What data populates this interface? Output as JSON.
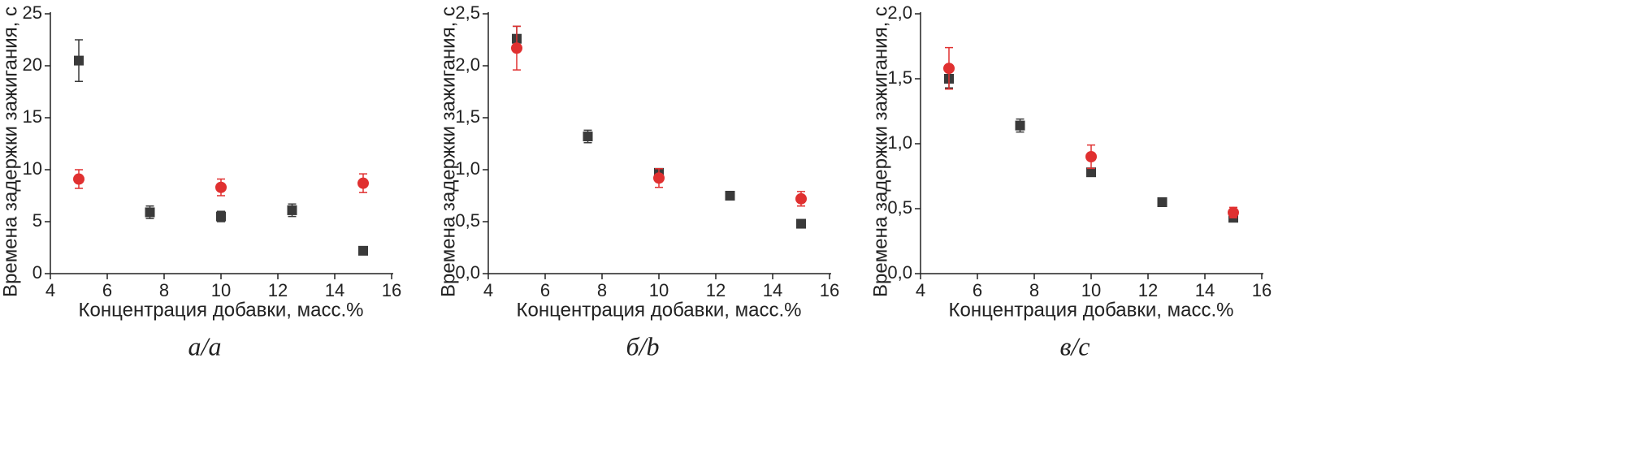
{
  "chart_data": [
    {
      "type": "scatter",
      "caption": "а/a",
      "x_label": "Концентрация добавки, масс.%",
      "y_label": "Времена задержки зажигания, с",
      "xlim": [
        4,
        16
      ],
      "xticks": [
        4,
        6,
        8,
        10,
        12,
        14,
        16
      ],
      "ylim": [
        0,
        25
      ],
      "yticks": [
        0,
        5,
        10,
        15,
        20,
        25
      ],
      "series": [
        {
          "color": "#3a3a3a",
          "marker": "square",
          "x": [
            5,
            7.5,
            10,
            12.5,
            15
          ],
          "values": [
            20.5,
            5.9,
            5.5,
            6.1,
            2.2
          ],
          "errors": [
            2.0,
            0.6,
            0.5,
            0.6,
            0.2
          ]
        },
        {
          "color": "#e03030",
          "marker": "circle",
          "x": [
            5,
            10,
            15
          ],
          "values": [
            9.1,
            8.3,
            8.7
          ],
          "errors": [
            0.9,
            0.8,
            0.9
          ]
        }
      ]
    },
    {
      "type": "scatter",
      "caption": "б/b",
      "x_label": "Концентрация добавки, масс.%",
      "y_label": "Времена задержки зажигания, с",
      "xlim": [
        4,
        16
      ],
      "xticks": [
        4,
        6,
        8,
        10,
        12,
        14,
        16
      ],
      "ylim": [
        0,
        2.5
      ],
      "yticks": [
        {
          "value": 0,
          "label": "0,0"
        },
        {
          "value": 0.5,
          "label": "0,5"
        },
        {
          "value": 1,
          "label": "1,0"
        },
        {
          "value": 1.5,
          "label": "1,5"
        },
        {
          "value": 2,
          "label": "2,0"
        },
        {
          "value": 2.5,
          "label": "2,5"
        }
      ],
      "series": [
        {
          "color": "#3a3a3a",
          "marker": "square",
          "x": [
            5,
            7.5,
            10,
            12.5,
            15
          ],
          "values": [
            2.26,
            1.32,
            0.97,
            0.75,
            0.48
          ],
          "errors": [
            0.12,
            0.06,
            0.04,
            0.02,
            0.02
          ]
        },
        {
          "color": "#e03030",
          "marker": "circle",
          "x": [
            5,
            10,
            15
          ],
          "values": [
            2.17,
            0.92,
            0.72
          ],
          "errors": [
            0.21,
            0.09,
            0.07
          ]
        }
      ]
    },
    {
      "type": "scatter",
      "caption": "в/c",
      "x_label": "Концентрация добавки, масс.%",
      "y_label": "Времена задержки зажигания, с",
      "xlim": [
        4,
        16
      ],
      "xticks": [
        4,
        6,
        8,
        10,
        12,
        14,
        16
      ],
      "ylim": [
        0,
        2
      ],
      "yticks": [
        {
          "value": 0,
          "label": "0,0"
        },
        {
          "value": 0.5,
          "label": "0,5"
        },
        {
          "value": 1,
          "label": "1,0"
        },
        {
          "value": 1.5,
          "label": "1,5"
        },
        {
          "value": 2,
          "label": "2,0"
        }
      ],
      "series": [
        {
          "color": "#3a3a3a",
          "marker": "square",
          "x": [
            5,
            7.5,
            10,
            12.5,
            15
          ],
          "values": [
            1.5,
            1.14,
            0.78,
            0.55,
            0.43
          ],
          "errors": [
            0.07,
            0.05,
            0.03,
            0.02,
            0.02
          ]
        },
        {
          "color": "#e03030",
          "marker": "circle",
          "x": [
            5,
            10,
            15
          ],
          "values": [
            1.58,
            0.9,
            0.47
          ],
          "errors": [
            0.16,
            0.09,
            0.04
          ]
        }
      ]
    }
  ]
}
